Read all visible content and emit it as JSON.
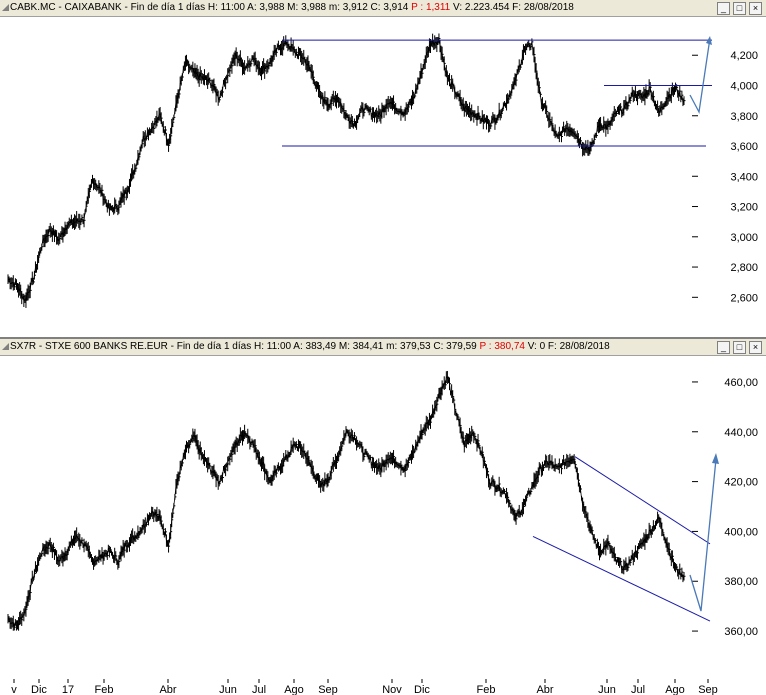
{
  "top": {
    "ticker": "CABK.MC - CAIXABANK - Fin de día 1 días",
    "stats_pre": "H: 11:00  A: 3,988  M: 3,988  m: 3,912  C: 3,914",
    "stat_p": "P : 1,311",
    "stats_post": "V: 2.223.454  F: 28/08/2018"
  },
  "bottom": {
    "ticker": "SX7R - STXE 600 BANKS RE.EUR - Fin de día 1 días",
    "stats_pre": "H: 11:00  A: 383,49  M: 384,41  m: 379,53  C: 379,59",
    "stat_p": "P : 380,74",
    "stats_post": "V: 0  F: 28/08/2018"
  },
  "window_buttons": [
    "minimize-icon",
    "maximize-icon",
    "close-icon"
  ],
  "colors": {
    "price": "#000000",
    "trendline": "#1a1aa8",
    "arrow": "#4a7ab8",
    "header_bg": "#ece9d8",
    "p_text": "#e00000"
  },
  "x_axis_labels": [
    "v",
    "Dic",
    "17",
    "Feb",
    "Abr",
    "Jun",
    "Jul",
    "Ago",
    "Sep",
    "Nov",
    "Dic",
    "Feb",
    "Abr",
    "Jun",
    "Jul",
    "Ago",
    "Sep"
  ],
  "chart_data": [
    {
      "type": "line",
      "title": "CABK.MC - CAIXABANK",
      "ylim": [
        2.45,
        4.38
      ],
      "y_ticks": [
        "2,600",
        "2,800",
        "3,000",
        "3,200",
        "3,400",
        "3,600",
        "3,800",
        "4,000",
        "4,200"
      ],
      "series": [
        {
          "name": "CABK.MC",
          "values": [
            2.72,
            2.68,
            2.58,
            2.72,
            2.95,
            3.05,
            2.98,
            3.08,
            3.1,
            3.12,
            3.38,
            3.3,
            3.18,
            3.2,
            3.3,
            3.45,
            3.65,
            3.72,
            3.8,
            3.62,
            3.9,
            4.15,
            4.08,
            4.05,
            4.02,
            3.92,
            4.08,
            4.2,
            4.12,
            4.18,
            4.1,
            4.15,
            4.25,
            4.28,
            4.22,
            4.18,
            4.08,
            3.92,
            3.88,
            3.92,
            3.8,
            3.75,
            3.85,
            3.82,
            3.8,
            3.9,
            3.85,
            3.82,
            3.92,
            4.1,
            4.28,
            4.3,
            4.05,
            3.95,
            3.85,
            3.82,
            3.78,
            3.75,
            3.8,
            3.9,
            4.02,
            4.22,
            4.28,
            3.92,
            3.78,
            3.65,
            3.72,
            3.7,
            3.6,
            3.58,
            3.75,
            3.72,
            3.82,
            3.85,
            3.95,
            3.92,
            3.98,
            3.82,
            3.92,
            3.98,
            3.9
          ]
        }
      ],
      "trendlines": [
        {
          "kind": "resistance",
          "value": 4.3
        },
        {
          "kind": "support",
          "value": 3.6
        },
        {
          "kind": "range-top",
          "value": 4.0
        }
      ]
    },
    {
      "type": "line",
      "title": "SX7R - STXE 600 BANKS RE.EUR",
      "ylim": [
        352,
        466
      ],
      "y_ticks": [
        "360,00",
        "380,00",
        "400,00",
        "420,00",
        "440,00",
        "460,00"
      ],
      "series": [
        {
          "name": "SX7R",
          "values": [
            365,
            362,
            368,
            382,
            392,
            395,
            388,
            392,
            398,
            395,
            388,
            390,
            392,
            388,
            395,
            398,
            402,
            408,
            405,
            395,
            420,
            432,
            438,
            430,
            425,
            420,
            428,
            435,
            440,
            435,
            428,
            420,
            425,
            430,
            435,
            432,
            425,
            418,
            422,
            430,
            440,
            438,
            432,
            428,
            425,
            430,
            428,
            425,
            432,
            440,
            445,
            455,
            462,
            448,
            435,
            440,
            432,
            420,
            418,
            415,
            405,
            410,
            418,
            425,
            428,
            425,
            428,
            430,
            412,
            400,
            392,
            395,
            388,
            385,
            390,
            395,
            400,
            405,
            395,
            385,
            382
          ]
        }
      ],
      "trendlines": [
        {
          "kind": "channel-top",
          "from": 430,
          "to": 395
        },
        {
          "kind": "channel-bottom",
          "from": 398,
          "to": 364
        }
      ]
    }
  ]
}
